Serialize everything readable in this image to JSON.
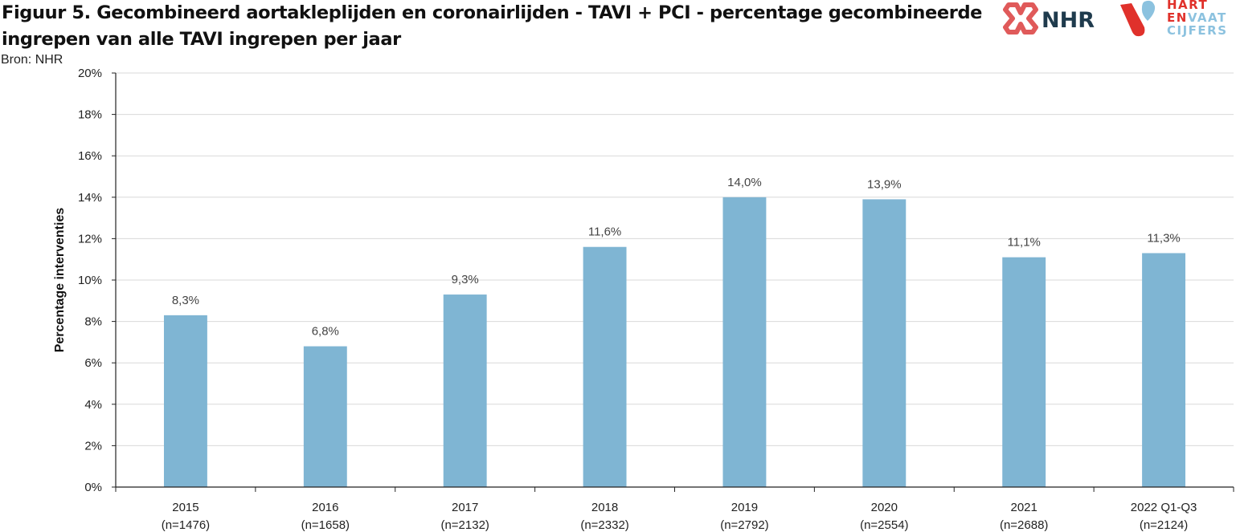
{
  "title": "Figuur 5. Gecombineerd aortakleplijden en coronairlijden - TAVI + PCI - percentage gecombineerde ingrepen van alle TAVI ingrepen per jaar",
  "source": "Bron: NHR",
  "logos": {
    "nhr": "NHR",
    "hart": "HART",
    "en": "EN",
    "vaat": "VAAT",
    "cijfers": "CIJFERS"
  },
  "colors": {
    "bar": "#7fb5d3",
    "grid": "#d9d9d9",
    "axis": "#222222",
    "nhr_red": "#e05a5a",
    "nhr_text": "#1f3b4d",
    "hvc_red": "#e0312b",
    "hvc_blue": "#8cc2df"
  },
  "chart_data": {
    "type": "bar",
    "title": "",
    "ylabel": "Percentage  interventies",
    "ylim": [
      0,
      20
    ],
    "ytick_step": 2,
    "ytick_format": "percent",
    "grid": true,
    "categories": [
      [
        "2015",
        "(n=1476)"
      ],
      [
        "2016",
        "(n=1658)"
      ],
      [
        "2017",
        "(n=2132)"
      ],
      [
        "2018",
        "(n=2332)"
      ],
      [
        "2019",
        "(n=2792)"
      ],
      [
        "2020",
        "(n=2554)"
      ],
      [
        "2021",
        "(n=2688)"
      ],
      [
        "2022 Q1-Q3",
        "(n=2124)"
      ]
    ],
    "values": [
      8.3,
      6.8,
      9.3,
      11.6,
      14.0,
      13.9,
      11.1,
      11.3
    ],
    "data_labels": [
      "8,3%",
      "6,8%",
      "9,3%",
      "11,6%",
      "14,0%",
      "13,9%",
      "11,1%",
      "11,3%"
    ]
  }
}
